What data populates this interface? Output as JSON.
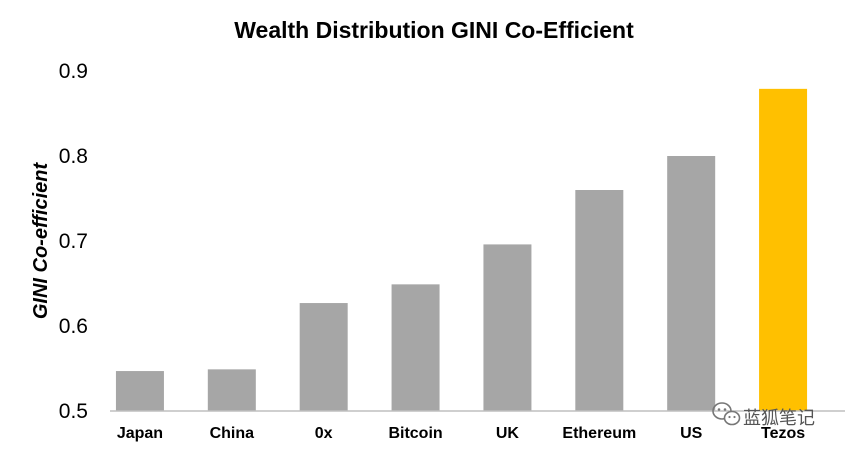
{
  "chart_data": {
    "type": "bar",
    "title": "Wealth Distribution GINI Co-Efficient",
    "xlabel": "",
    "ylabel": "GINI Co-efficient",
    "categories": [
      "Japan",
      "China",
      "0x",
      "Bitcoin",
      "UK",
      "Ethereum",
      "US",
      "Tezos"
    ],
    "values": [
      0.547,
      0.549,
      0.627,
      0.649,
      0.696,
      0.76,
      0.8,
      0.879
    ],
    "ylim": [
      0.5,
      0.9
    ],
    "yticks": [
      "0.5",
      "0.6",
      "0.7",
      "0.8",
      "0.9"
    ],
    "grid": false,
    "legend": "none",
    "colors": {
      "default_bar": "#a6a6a6",
      "highlight_bar": "#ffc000",
      "highlight_category": "Tezos",
      "axis": "#bfbfbf",
      "text": "#000000"
    }
  },
  "watermark": {
    "text": "蓝狐笔记",
    "icon": "wechat-icon"
  }
}
